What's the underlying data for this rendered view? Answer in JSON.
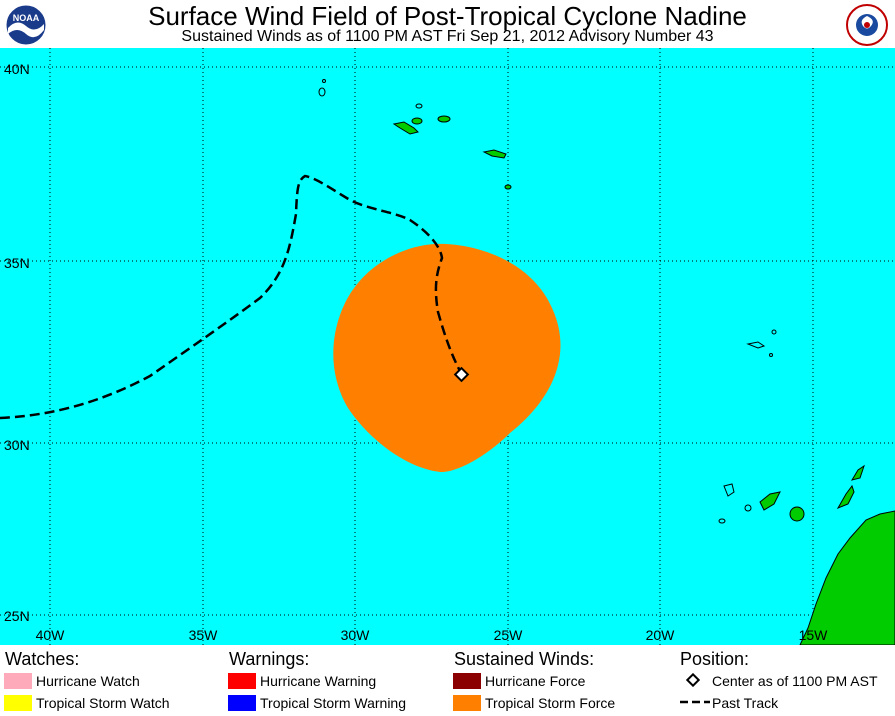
{
  "header": {
    "title": "Surface Wind Field of Post-Tropical Cyclone Nadine",
    "subtitle": "Sustained Winds as of 1100 PM AST Fri Sep 21, 2012     Advisory Number 43",
    "left_logo_text": "NOAA",
    "right_logo_text": "NATIONAL WEATHER SERVICE"
  },
  "map": {
    "ocean_color": "#00ffff",
    "land_color": "#00cc00",
    "wind_field_color": "#ff8000",
    "lat_labels": [
      "40N",
      "35N",
      "30N",
      "25N"
    ],
    "lon_labels": [
      "40W",
      "35W",
      "30W",
      "25W",
      "20W",
      "15W"
    ],
    "storm_center": {
      "lat": 31.9,
      "lon": -26.6
    }
  },
  "legend": {
    "watches": {
      "heading": "Watches:",
      "items": [
        {
          "label": "Hurricane Watch",
          "color": "#ffaabb"
        },
        {
          "label": "Tropical Storm Watch",
          "color": "#ffff00"
        }
      ]
    },
    "warnings": {
      "heading": "Warnings:",
      "items": [
        {
          "label": "Hurricane Warning",
          "color": "#ff0000"
        },
        {
          "label": "Tropical Storm Warning",
          "color": "#0000ff"
        }
      ]
    },
    "winds": {
      "heading": "Sustained Winds:",
      "items": [
        {
          "label": "Hurricane Force",
          "color": "#8b0000"
        },
        {
          "label": "Tropical Storm Force",
          "color": "#ff8000"
        }
      ]
    },
    "position": {
      "heading": "Position:",
      "center_label": "Center as of 1100 PM AST",
      "track_label": "Past Track"
    }
  }
}
